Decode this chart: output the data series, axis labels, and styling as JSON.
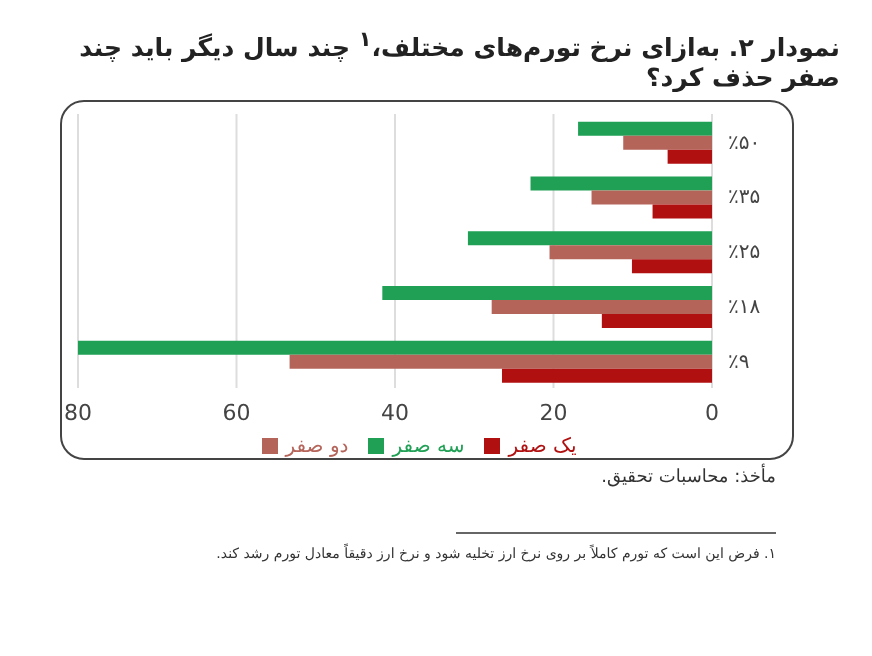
{
  "chart_data": {
    "type": "bar",
    "orientation": "horizontal",
    "title": "نمودار ۲. به‌ازای نرخ تورم‌های مختلف،$^{۱}$ چند سال دیگر باید چند صفر حذف کرد؟",
    "categories": [
      "٪۵۰",
      "٪۳۵",
      "٪۲۵",
      "٪۱۸",
      "٪۹"
    ],
    "series": [
      {
        "name": "سه صفر",
        "color": "#1fa055",
        "values": [
          16.9,
          22.9,
          30.8,
          41.6,
          80
        ]
      },
      {
        "name": "دو صفر",
        "color": "#b5645a",
        "values": [
          11.2,
          15.2,
          20.5,
          27.8,
          53.3
        ]
      },
      {
        "name": "یک صفر",
        "color": "#b01010",
        "values": [
          5.6,
          7.5,
          10.1,
          13.9,
          26.5
        ]
      }
    ],
    "xlim": [
      80,
      0
    ],
    "xticks": [
      80,
      60,
      40,
      20,
      0
    ],
    "grid": "x",
    "legend": "bottom",
    "annotations": [
      "مأخذ: محاسبات تحقیق.",
      "۱. فرض این است که تورم کاملاً بر روی نرخ ارز تخلیه شود و نرخ ارز دقیقاً معادل تورم رشد کند."
    ]
  }
}
